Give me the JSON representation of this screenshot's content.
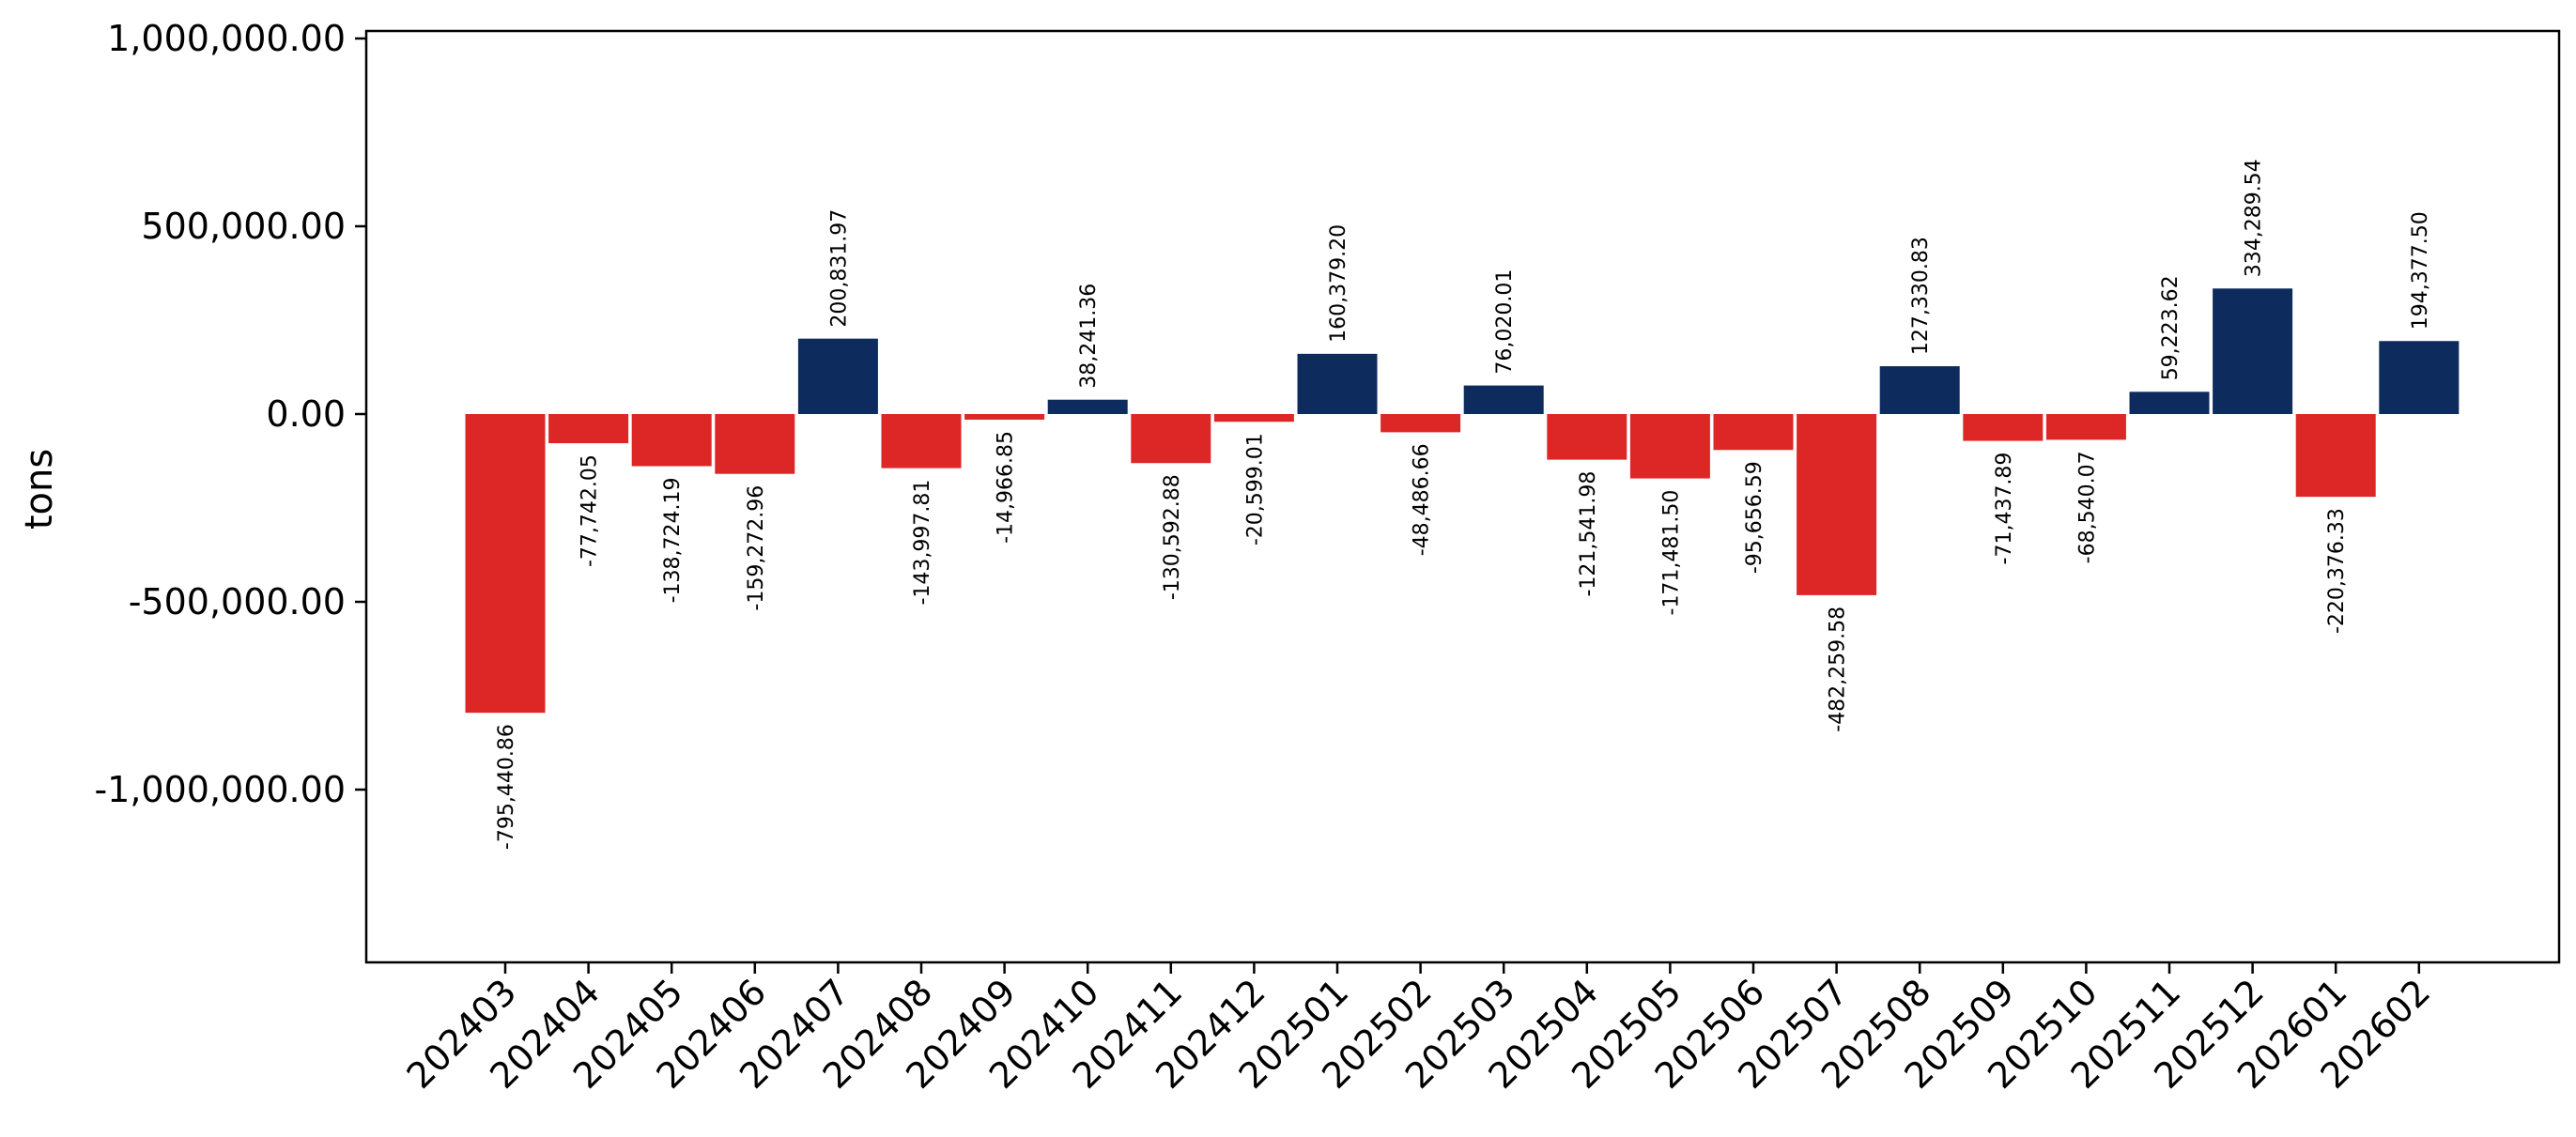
{
  "chart_data": {
    "type": "bar",
    "title": "",
    "xlabel": "",
    "ylabel": "tons",
    "ylim": [
      -1460000,
      1020000
    ],
    "yticks": [
      1000000,
      500000,
      0,
      -500000,
      -1000000
    ],
    "ytick_labels": [
      "1,000,000.00",
      "500,000.00",
      "0.00",
      "-500,000.00",
      "-1,000,000.00"
    ],
    "grid": false,
    "legend": "none",
    "categories": [
      "202403",
      "202404",
      "202405",
      "202406",
      "202407",
      "202408",
      "202409",
      "202410",
      "202411",
      "202412",
      "202501",
      "202502",
      "202503",
      "202504",
      "202505",
      "202506",
      "202507",
      "202508",
      "202509",
      "202510",
      "202511",
      "202512",
      "202601",
      "202602"
    ],
    "values": [
      -795440.86,
      -77742.05,
      -138724.19,
      -159272.96,
      200831.97,
      -143997.81,
      -14966.85,
      38241.36,
      -130592.88,
      -20599.01,
      160379.2,
      -48486.66,
      76020.01,
      -121541.98,
      -171481.5,
      -95656.59,
      -482259.58,
      127330.83,
      -71437.89,
      -68540.07,
      59223.62,
      334289.54,
      -220376.33,
      194377.5
    ],
    "value_labels": [
      "-795,440.86",
      "-77,742.05",
      "-138,724.19",
      "-159,272.96",
      "200,831.97",
      "-143,997.81",
      "-14,966.85",
      "38,241.36",
      "-130,592.88",
      "-20,599.01",
      "160,379.20",
      "-48,486.66",
      "76,020.01",
      "-121,541.98",
      "-171,481.50",
      "-95,656.59",
      "-482,259.58",
      "127,330.83",
      "-71,437.89",
      "-68,540.07",
      "59,223.62",
      "334,289.54",
      "-220,376.33",
      "194,377.50"
    ],
    "colors": {
      "positive": "#0d2b5c",
      "negative": "#dd2727"
    }
  }
}
